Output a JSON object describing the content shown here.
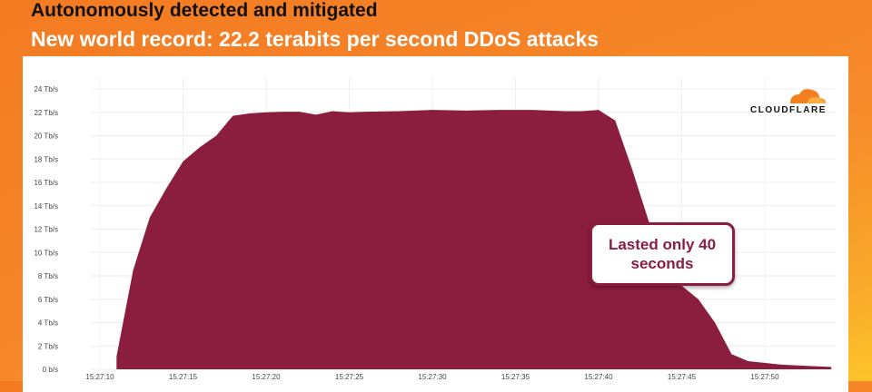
{
  "header": {
    "subtitle": "Autonomously detected and mitigated",
    "title": "New world record: 22.2 terabits per second DDoS attacks"
  },
  "logo": {
    "text": "CLOUDFLARE",
    "color": "#f38020"
  },
  "callout": {
    "text": "Lasted only 40 seconds"
  },
  "chart_data": {
    "type": "area",
    "color": "#8b1e3f",
    "grid": true,
    "ylim": [
      0,
      24
    ],
    "xlim": [
      "15:27:08",
      "15:27:55"
    ],
    "yticks": [
      0,
      2,
      4,
      6,
      8,
      10,
      12,
      14,
      16,
      18,
      20,
      22,
      24
    ],
    "ytick_labels": [
      "0 b/s",
      "2 Tb/s",
      "4 Tb/s",
      "6 Tb/s",
      "8 Tb/s",
      "10 Tb/s",
      "12 Tb/s",
      "14 Tb/s",
      "16 Tb/s",
      "18 Tb/s",
      "20 Tb/s",
      "22 Tb/s",
      "24 Tb/s"
    ],
    "xticks": [
      "15:27:10",
      "15:27:15",
      "15:27:20",
      "15:27:25",
      "15:27:30",
      "15:27:35",
      "15:27:40",
      "15:27:45",
      "15:27:50"
    ],
    "ylabel_unit": "Tb/s",
    "x": [
      "15:27:11",
      "15:27:11",
      "15:27:12",
      "15:27:13",
      "15:27:14",
      "15:27:15",
      "15:27:16",
      "15:27:17",
      "15:27:18",
      "15:27:19",
      "15:27:20",
      "15:27:21",
      "15:27:22",
      "15:27:23",
      "15:27:24",
      "15:27:25",
      "15:27:26",
      "15:27:28",
      "15:27:30",
      "15:27:32",
      "15:27:34",
      "15:27:36",
      "15:27:38",
      "15:27:39",
      "15:27:40",
      "15:27:41",
      "15:27:42",
      "15:27:44",
      "15:27:46",
      "15:27:47",
      "15:27:48",
      "15:27:49",
      "15:27:51",
      "15:27:54"
    ],
    "values": [
      0,
      1.1,
      8.5,
      13,
      15.5,
      17.8,
      19,
      20,
      21.7,
      21.9,
      22.0,
      22.05,
      22.05,
      21.8,
      22.1,
      22.0,
      22.05,
      22.1,
      22.2,
      22.15,
      22.2,
      22.2,
      22.1,
      22.1,
      22.2,
      21.3,
      17.2,
      8.3,
      6,
      4,
      1.3,
      0.7,
      0.4,
      0.2
    ]
  }
}
